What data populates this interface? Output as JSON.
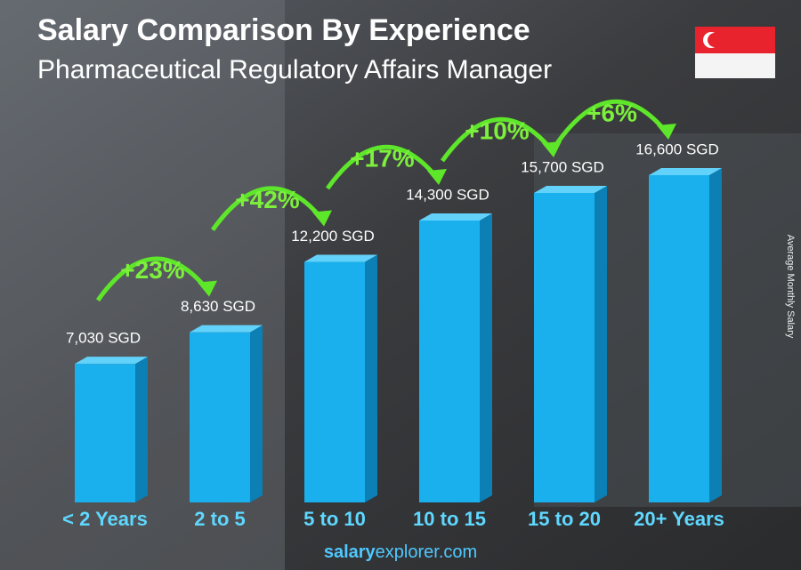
{
  "chart_data": {
    "type": "bar",
    "title": "Salary Comparison By Experience",
    "subtitle": "Pharmaceutical Regulatory Affairs Manager",
    "y_axis_label": "Average Monthly Salary",
    "categories": [
      "< 2 Years",
      "2 to 5",
      "5 to 10",
      "10 to 15",
      "15 to 20",
      "20+ Years"
    ],
    "values": [
      7030,
      8630,
      12200,
      14300,
      15700,
      16600
    ],
    "value_labels": [
      "7,030 SGD",
      "8,630 SGD",
      "12,200 SGD",
      "14,300 SGD",
      "15,700 SGD",
      "16,600 SGD"
    ],
    "changes": [
      "+23%",
      "+42%",
      "+17%",
      "+10%",
      "+6%"
    ],
    "color": "#1ab0ee",
    "footer_bold": "salary",
    "footer_rest": "explorer.com"
  }
}
